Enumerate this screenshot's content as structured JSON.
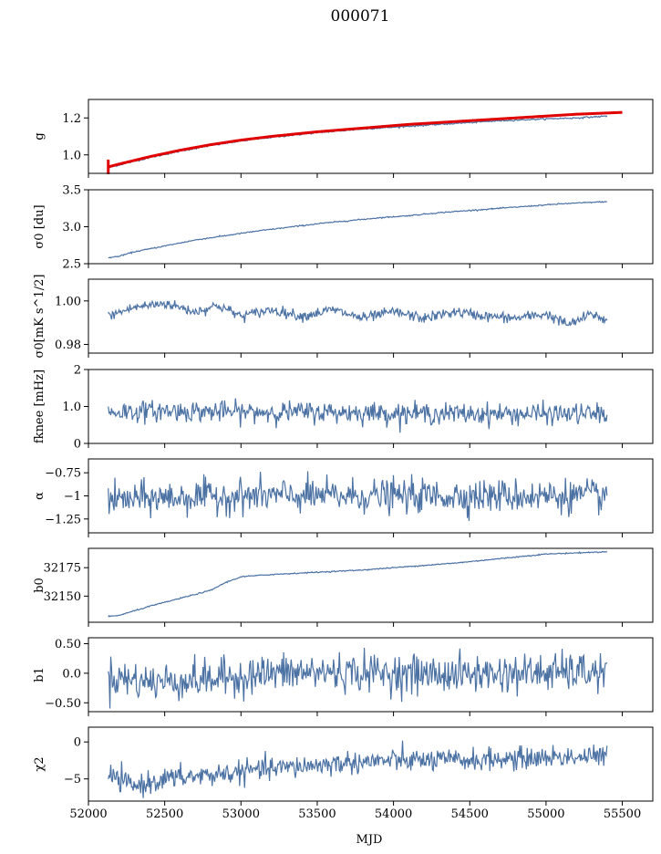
{
  "title": "000071",
  "xlabel": "MJD",
  "x_range": [
    52000,
    55700
  ],
  "x_ticks": [
    52000,
    52500,
    53000,
    53500,
    54000,
    54500,
    55000,
    55500
  ],
  "line_color": "#4c72a4",
  "model_color": "#e00000",
  "chart_data": [
    {
      "type": "line",
      "ylabel": "g",
      "ylim": [
        0.9,
        1.3
      ],
      "yticks": [
        1.0,
        1.2
      ],
      "series": [
        {
          "values": [
            [
              52130,
              0.93
            ],
            [
              52200,
              0.945
            ],
            [
              52400,
              0.985
            ],
            [
              52600,
              1.02
            ],
            [
              52800,
              1.05
            ],
            [
              53000,
              1.075
            ],
            [
              53200,
              1.095
            ],
            [
              53500,
              1.12
            ],
            [
              53800,
              1.14
            ],
            [
              54100,
              1.155
            ],
            [
              54400,
              1.17
            ],
            [
              54700,
              1.185
            ],
            [
              55000,
              1.195
            ],
            [
              55200,
              1.2
            ],
            [
              55400,
              1.21
            ]
          ]
        },
        {
          "role": "model",
          "values": [
            [
              52130,
              0.935
            ],
            [
              52200,
              0.95
            ],
            [
              52400,
              0.99
            ],
            [
              52600,
              1.025
            ],
            [
              52800,
              1.055
            ],
            [
              53000,
              1.08
            ],
            [
              53200,
              1.1
            ],
            [
              53500,
              1.125
            ],
            [
              53800,
              1.145
            ],
            [
              54100,
              1.165
            ],
            [
              54400,
              1.18
            ],
            [
              54700,
              1.195
            ],
            [
              55000,
              1.21
            ],
            [
              55200,
              1.22
            ],
            [
              55500,
              1.23
            ]
          ]
        }
      ]
    },
    {
      "type": "line",
      "ylabel": "σ0 [du]",
      "ylim": [
        2.5,
        3.5
      ],
      "yticks": [
        2.5,
        3.0,
        3.5
      ],
      "series": [
        {
          "values": [
            [
              52130,
              2.58
            ],
            [
              52200,
              2.6
            ],
            [
              52300,
              2.66
            ],
            [
              52500,
              2.74
            ],
            [
              52700,
              2.82
            ],
            [
              52900,
              2.88
            ],
            [
              53100,
              2.94
            ],
            [
              53300,
              2.99
            ],
            [
              53500,
              3.04
            ],
            [
              53700,
              3.08
            ],
            [
              53900,
              3.12
            ],
            [
              54100,
              3.15
            ],
            [
              54300,
              3.19
            ],
            [
              54500,
              3.22
            ],
            [
              54700,
              3.25
            ],
            [
              54900,
              3.28
            ],
            [
              55100,
              3.31
            ],
            [
              55300,
              3.33
            ],
            [
              55400,
              3.34
            ]
          ]
        }
      ]
    },
    {
      "type": "line",
      "ylabel": "σ0[mK s^1/2]",
      "ylim": [
        0.976,
        1.01
      ],
      "yticks": [
        0.98,
        1.0
      ],
      "series": [
        {
          "values": [
            [
              52130,
              0.993
            ],
            [
              52300,
              0.997
            ],
            [
              52500,
              0.999
            ],
            [
              52700,
              0.995
            ],
            [
              52850,
              0.998
            ],
            [
              53000,
              0.993
            ],
            [
              53200,
              0.996
            ],
            [
              53400,
              0.993
            ],
            [
              53600,
              0.996
            ],
            [
              53800,
              0.992
            ],
            [
              54000,
              0.995
            ],
            [
              54200,
              0.992
            ],
            [
              54400,
              0.995
            ],
            [
              54600,
              0.993
            ],
            [
              54800,
              0.992
            ],
            [
              55000,
              0.994
            ],
            [
              55150,
              0.989
            ],
            [
              55300,
              0.994
            ],
            [
              55400,
              0.991
            ]
          ]
        }
      ]
    },
    {
      "type": "line",
      "ylabel": "fknee [mHz]",
      "ylim": [
        0,
        2
      ],
      "yticks": [
        0,
        1,
        2
      ],
      "series": [
        {
          "values": [
            [
              52130,
              0.85
            ],
            [
              52500,
              0.88
            ],
            [
              53000,
              0.85
            ],
            [
              53500,
              0.85
            ],
            [
              54000,
              0.82
            ],
            [
              54500,
              0.8
            ],
            [
              55000,
              0.8
            ],
            [
              55400,
              0.8
            ]
          ]
        }
      ]
    },
    {
      "type": "line",
      "ylabel": "α",
      "ylim": [
        -1.4,
        -0.6
      ],
      "yticks": [
        -1.25,
        -1.0,
        -0.75
      ],
      "series": [
        {
          "values": [
            [
              52130,
              -1.05
            ],
            [
              52500,
              -1.02
            ],
            [
              53000,
              -1.0
            ],
            [
              53500,
              -1.0
            ],
            [
              54000,
              -1.0
            ],
            [
              54500,
              -1.0
            ],
            [
              55000,
              -1.0
            ],
            [
              55400,
              -1.0
            ]
          ]
        }
      ]
    },
    {
      "type": "line",
      "ylabel": "b0",
      "ylim": [
        32127,
        32192
      ],
      "yticks": [
        32150,
        32175
      ],
      "series": [
        {
          "values": [
            [
              52130,
              32132
            ],
            [
              52200,
              32133
            ],
            [
              52400,
              32141
            ],
            [
              52600,
              32148
            ],
            [
              52800,
              32155
            ],
            [
              52900,
              32162
            ],
            [
              53000,
              32167
            ],
            [
              53200,
              32169
            ],
            [
              53500,
              32171
            ],
            [
              53800,
              32173
            ],
            [
              54100,
              32176
            ],
            [
              54400,
              32179
            ],
            [
              54700,
              32183
            ],
            [
              55000,
              32187
            ],
            [
              55200,
              32188
            ],
            [
              55400,
              32189
            ]
          ]
        }
      ]
    },
    {
      "type": "line",
      "ylabel": "b1",
      "ylim": [
        -0.65,
        0.6
      ],
      "yticks": [
        -0.5,
        0.0,
        0.5
      ],
      "series": [
        {
          "values": [
            [
              52130,
              -0.05
            ],
            [
              52400,
              -0.15
            ],
            [
              52800,
              -0.1
            ],
            [
              53200,
              0.0
            ],
            [
              53600,
              0.02
            ],
            [
              54000,
              0.0
            ],
            [
              54400,
              -0.02
            ],
            [
              54800,
              0.0
            ],
            [
              55200,
              0.02
            ],
            [
              55400,
              0.0
            ]
          ]
        }
      ]
    },
    {
      "type": "line",
      "ylabel": "χ2",
      "ylim": [
        -8,
        2
      ],
      "yticks": [
        -5,
        0
      ],
      "series": [
        {
          "values": [
            [
              52130,
              -4.5
            ],
            [
              52300,
              -6.0
            ],
            [
              52500,
              -5.0
            ],
            [
              52800,
              -4.5
            ],
            [
              53100,
              -3.8
            ],
            [
              53400,
              -3.3
            ],
            [
              53700,
              -2.8
            ],
            [
              54000,
              -2.5
            ],
            [
              54400,
              -2.5
            ],
            [
              54800,
              -2.3
            ],
            [
              55100,
              -2.0
            ],
            [
              55400,
              -2.0
            ]
          ]
        }
      ]
    }
  ]
}
